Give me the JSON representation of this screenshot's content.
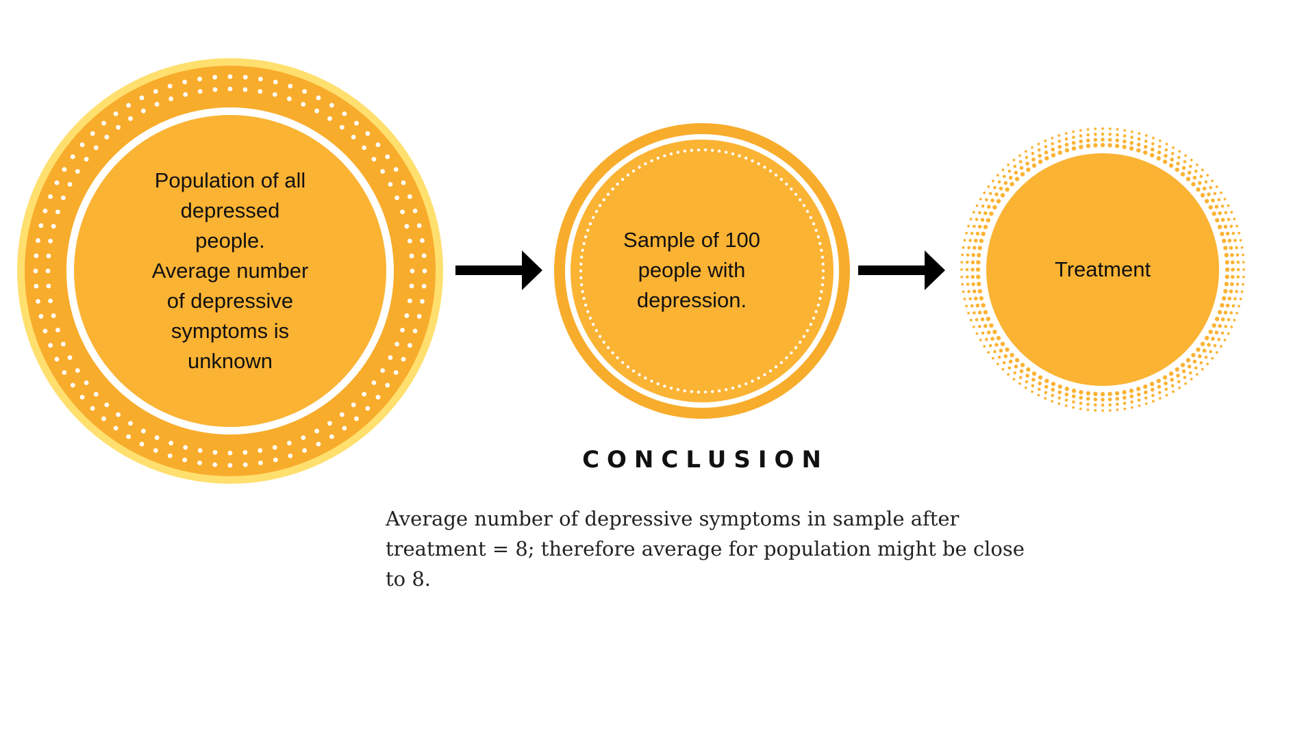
{
  "colors": {
    "primary": "#FBB334",
    "outer_ring": "#FFDF6E",
    "ring": "#F8AC2C",
    "white": "#FFFFFF",
    "arrow": "#000000",
    "text": "#111111"
  },
  "nodes": [
    {
      "id": "population",
      "lines": [
        "Population of all",
        "depressed",
        "people.",
        "Average number",
        "of depressive",
        "symptoms is",
        "unknown"
      ]
    },
    {
      "id": "sample",
      "lines": [
        "Sample of 100",
        "people with",
        "depression."
      ]
    },
    {
      "id": "treatment",
      "lines": [
        "Treatment"
      ]
    }
  ],
  "arrows": [
    "right-arrow-icon",
    "right-arrow-icon"
  ],
  "conclusion": {
    "heading": "CONCLUSION",
    "body": "Average number of depressive symptoms in sample after treatment = 8; therefore average for population might be close to 8."
  }
}
